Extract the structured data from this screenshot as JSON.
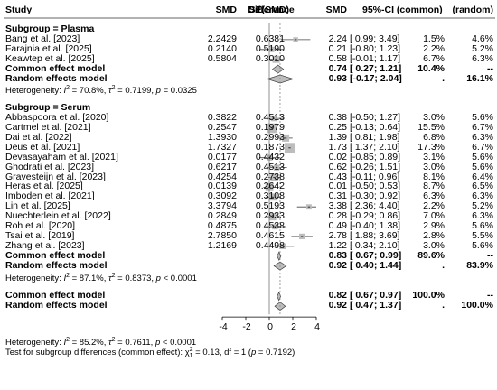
{
  "chart_data": {
    "type": "forest",
    "columns": {
      "study": "Study",
      "smd": "SMD",
      "se": "SE(SMD)",
      "difference": "Difference",
      "smd_right": "SMD",
      "ci": "95%-CI",
      "common": "(common)",
      "random": "(random)"
    },
    "xaxis": {
      "ticks": [
        "-4",
        "-2",
        "0",
        "2",
        "4"
      ],
      "xlim": [
        -4,
        4
      ],
      "reference_line": 0,
      "overall_line": 0.92
    },
    "subgroups": [
      {
        "header": "Subgroup = Plasma",
        "studies": [
          {
            "study": "Bang et al. [2023]",
            "smd": "2.2429",
            "se": "0.6381",
            "est": "2.24",
            "ci": "[ 0.99; 3.49]",
            "w_common": "1.5%",
            "w_random": "4.6%",
            "x": 2.24,
            "lo": 0.99,
            "hi": 3.49,
            "wc": 1.5
          },
          {
            "study": "Farajnia et al. [2025]",
            "smd": "0.2140",
            "se": "0.5190",
            "est": "0.21",
            "ci": "[-0.80; 1.23]",
            "w_common": "2.2%",
            "w_random": "5.2%",
            "x": 0.21,
            "lo": -0.8,
            "hi": 1.23,
            "wc": 2.2
          },
          {
            "study": "Keawtep et al. [2025]",
            "smd": "0.5804",
            "se": "0.3010",
            "est": "0.58",
            "ci": "[-0.01; 1.17]",
            "w_common": "6.7%",
            "w_random": "6.3%",
            "x": 0.58,
            "lo": -0.01,
            "hi": 1.17,
            "wc": 6.7
          }
        ],
        "common": {
          "label": "Common effect model",
          "est": "0.74",
          "ci": "[ 0.27; 1.21]",
          "w_common": "10.4%",
          "w_random": "--",
          "x": 0.74,
          "lo": 0.27,
          "hi": 1.21
        },
        "random": {
          "label": "Random effects model",
          "est": "0.93",
          "ci": "[-0.17; 2.04]",
          "w_common": ".",
          "w_random": "16.1%",
          "x": 0.93,
          "lo": -0.17,
          "hi": 2.04
        },
        "heterogeneity": {
          "prefix": "Heterogeneity: ",
          "i2_label": "I",
          "i2_value": "= 70.8%, ",
          "tau_label": "τ",
          "tau_value": " = 0.7199, ",
          "p_label": "p",
          "p_value": " = 0.0325"
        }
      },
      {
        "header": "Subgroup = Serum",
        "studies": [
          {
            "study": "Abbaspoora et al. [2020]",
            "smd": "0.3822",
            "se": "0.4513",
            "est": "0.38",
            "ci": "[-0.50; 1.27]",
            "w_common": "3.0%",
            "w_random": "5.6%",
            "x": 0.38,
            "lo": -0.5,
            "hi": 1.27,
            "wc": 3.0
          },
          {
            "study": "Cartmel et al. [2021]",
            "smd": "0.2547",
            "se": "0.1979",
            "est": "0.25",
            "ci": "[-0.13; 0.64]",
            "w_common": "15.5%",
            "w_random": "6.7%",
            "x": 0.25,
            "lo": -0.13,
            "hi": 0.64,
            "wc": 15.5
          },
          {
            "study": "Dai et al. [2022]",
            "smd": "1.3930",
            "se": "0.2993",
            "est": "1.39",
            "ci": "[ 0.81; 1.98]",
            "w_common": "6.8%",
            "w_random": "6.3%",
            "x": 1.39,
            "lo": 0.81,
            "hi": 1.98,
            "wc": 6.8
          },
          {
            "study": "Deus et al. [2021]",
            "smd": "1.7327",
            "se": "0.1873",
            "est": "1.73",
            "ci": "[ 1.37; 2.10]",
            "w_common": "17.3%",
            "w_random": "6.7%",
            "x": 1.73,
            "lo": 1.37,
            "hi": 2.1,
            "wc": 17.3
          },
          {
            "study": "Devasayaham et al. [2021]",
            "smd": "0.0177",
            "se": "0.4432",
            "est": "0.02",
            "ci": "[-0.85; 0.89]",
            "w_common": "3.1%",
            "w_random": "5.6%",
            "x": 0.02,
            "lo": -0.85,
            "hi": 0.89,
            "wc": 3.1
          },
          {
            "study": "Ghodrati et al. [2023]",
            "smd": "0.6217",
            "se": "0.4513",
            "est": "0.62",
            "ci": "[-0.26; 1.51]",
            "w_common": "3.0%",
            "w_random": "5.6%",
            "x": 0.62,
            "lo": -0.26,
            "hi": 1.51,
            "wc": 3.0
          },
          {
            "study": "Gravesteijn et al. [2023]",
            "smd": "0.4254",
            "se": "0.2738",
            "est": "0.43",
            "ci": "[-0.11; 0.96]",
            "w_common": "8.1%",
            "w_random": "6.4%",
            "x": 0.43,
            "lo": -0.11,
            "hi": 0.96,
            "wc": 8.1
          },
          {
            "study": "Heras et al. [2025]",
            "smd": "0.0139",
            "se": "0.2642",
            "est": "0.01",
            "ci": "[-0.50; 0.53]",
            "w_common": "8.7%",
            "w_random": "6.5%",
            "x": 0.01,
            "lo": -0.5,
            "hi": 0.53,
            "wc": 8.7
          },
          {
            "study": "Imboden et al. [2021]",
            "smd": "0.3092",
            "se": "0.3108",
            "est": "0.31",
            "ci": "[-0.30; 0.92]",
            "w_common": "6.3%",
            "w_random": "6.3%",
            "x": 0.31,
            "lo": -0.3,
            "hi": 0.92,
            "wc": 6.3
          },
          {
            "study": "Lin et al. [2025]",
            "smd": "3.3794",
            "se": "0.5193",
            "est": "3.38",
            "ci": "[ 2.36; 4.40]",
            "w_common": "2.2%",
            "w_random": "5.2%",
            "x": 3.38,
            "lo": 2.36,
            "hi": 4.4,
            "wc": 2.2
          },
          {
            "study": "Nuechterlein et al. [2022]",
            "smd": "0.2849",
            "se": "0.2933",
            "est": "0.28",
            "ci": "[-0.29; 0.86]",
            "w_common": "7.0%",
            "w_random": "6.3%",
            "x": 0.28,
            "lo": -0.29,
            "hi": 0.86,
            "wc": 7.0
          },
          {
            "study": "Roh et al. [2020]",
            "smd": "0.4875",
            "se": "0.4538",
            "est": "0.49",
            "ci": "[-0.40; 1.38]",
            "w_common": "2.9%",
            "w_random": "5.6%",
            "x": 0.49,
            "lo": -0.4,
            "hi": 1.38,
            "wc": 2.9
          },
          {
            "study": "Tsai et al. [2019]",
            "smd": "2.7850",
            "se": "0.4615",
            "est": "2.78",
            "ci": "[ 1.88; 3.69]",
            "w_common": "2.8%",
            "w_random": "5.5%",
            "x": 2.78,
            "lo": 1.88,
            "hi": 3.69,
            "wc": 2.8
          },
          {
            "study": "Zhang et al. [2023]",
            "smd": "1.2169",
            "se": "0.4498",
            "est": "1.22",
            "ci": "[ 0.34; 2.10]",
            "w_common": "3.0%",
            "w_random": "5.6%",
            "x": 1.22,
            "lo": 0.34,
            "hi": 2.1,
            "wc": 3.0
          }
        ],
        "common": {
          "label": "Common effect model",
          "est": "0.83",
          "ci": "[ 0.67; 0.99]",
          "w_common": "89.6%",
          "w_random": "--",
          "x": 0.83,
          "lo": 0.67,
          "hi": 0.99
        },
        "random": {
          "label": "Random effects model",
          "est": "0.92",
          "ci": "[ 0.40; 1.44]",
          "w_common": ".",
          "w_random": "83.9%",
          "x": 0.92,
          "lo": 0.4,
          "hi": 1.44
        },
        "heterogeneity": {
          "prefix": "Heterogeneity: ",
          "i2_label": "I",
          "i2_value": "= 87.1%, ",
          "tau_label": "τ",
          "tau_value": " = 0.8373, ",
          "p_label": "p",
          "p_value": " < 0.0001"
        }
      }
    ],
    "overall": {
      "common": {
        "label": "Common effect model",
        "est": "0.82",
        "ci": "[ 0.67; 0.97]",
        "w_common": "100.0%",
        "w_random": "--",
        "x": 0.82,
        "lo": 0.67,
        "hi": 0.97
      },
      "random": {
        "label": "Random effects model",
        "est": "0.92",
        "ci": "[ 0.47; 1.37]",
        "w_common": ".",
        "w_random": "100.0%",
        "x": 0.92,
        "lo": 0.47,
        "hi": 1.37
      }
    },
    "footer": {
      "heterogeneity": {
        "prefix": "Heterogeneity: ",
        "i2_label": "I",
        "i2_value": "= 85.2%, ",
        "tau_label": "τ",
        "tau_value": " = 0.7611, ",
        "p_label": "p",
        "p_value": " < 0.0001"
      },
      "subgroup_test": {
        "prefix": "Test for subgroup differences (common effect): ",
        "chi_label": "χ",
        "chi_sub": "1",
        "chi_value": " = 0.13, df = 1 (",
        "p_label": "p",
        "p_value": " = 0.7192)"
      }
    }
  }
}
